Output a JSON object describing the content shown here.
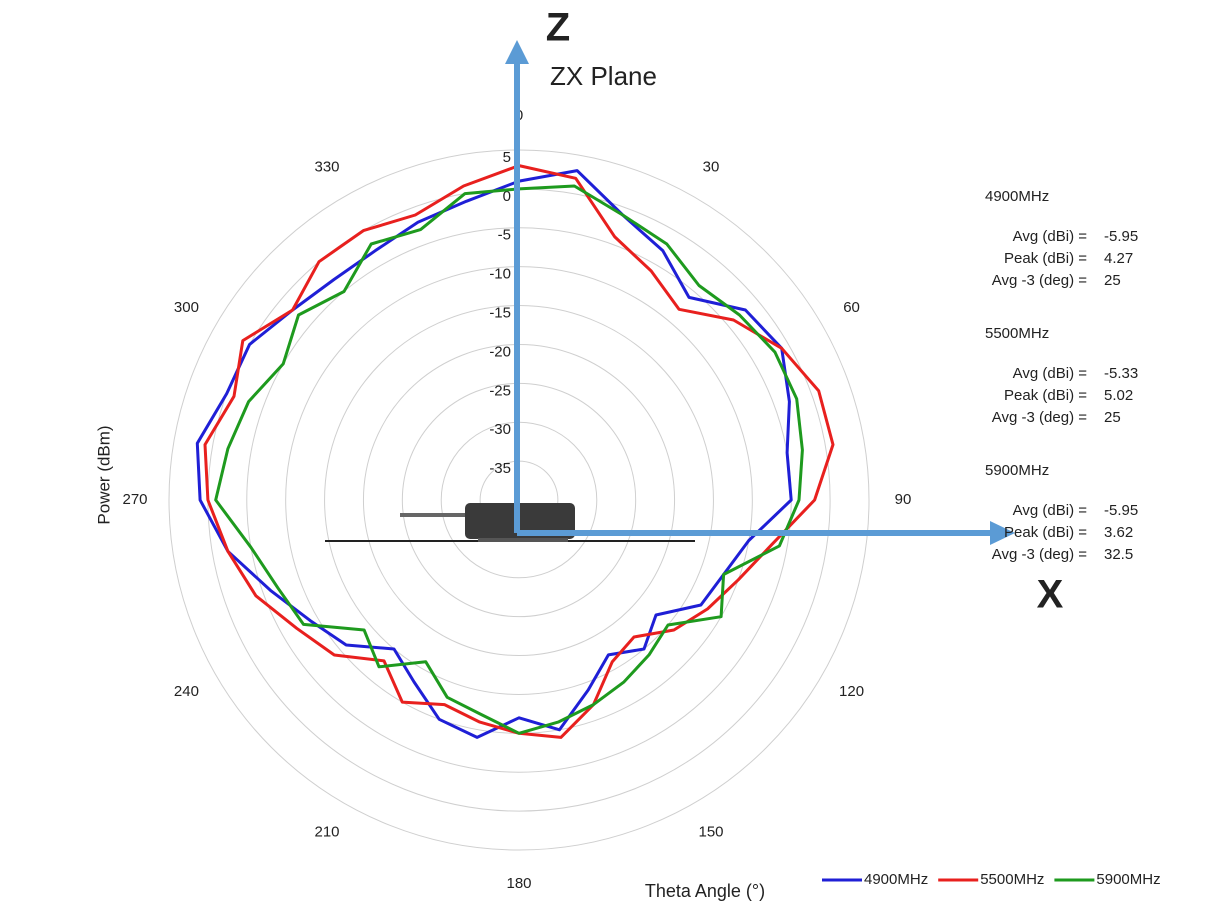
{
  "chart_data": {
    "type": "polar",
    "title": "ZX Plane",
    "x_axis_label": "Theta  Angle (°)",
    "y_axis_label": "Power (dBm)",
    "axis_annotations": [
      "Z",
      "X"
    ],
    "theta": [
      0,
      10,
      20,
      30,
      40,
      50,
      60,
      70,
      80,
      90,
      100,
      110,
      120,
      130,
      140,
      150,
      160,
      170,
      180,
      190,
      200,
      210,
      220,
      230,
      240,
      250,
      260,
      270,
      280,
      290,
      300,
      310,
      320,
      330,
      340,
      350
    ],
    "thetaticks": [
      0,
      30,
      60,
      90,
      120,
      150,
      180,
      210,
      240,
      270,
      300,
      330
    ],
    "rlim": [
      -40,
      5
    ],
    "rticks": [
      -35,
      -30,
      -25,
      -20,
      -15,
      -10,
      -5,
      0,
      5
    ],
    "grid": true,
    "legend": "bottom-right",
    "series": [
      {
        "name": "4900MHz",
        "color": "#1f1fd6",
        "values": [
          1,
          3,
          -1,
          -3,
          -6,
          -2,
          -1,
          -3,
          -5,
          -5,
          -10,
          -12,
          -13,
          -17,
          -15,
          -17,
          -14,
          -10,
          -12,
          -9,
          -10,
          -13,
          -15,
          -11,
          -9,
          -6,
          -2,
          1,
          2,
          0,
          0,
          -2,
          -3,
          -3,
          -2,
          -1
        ]
      },
      {
        "name": "5500MHz",
        "color": "#e8201e",
        "values": [
          3,
          2,
          -4,
          -6,
          -8,
          -4,
          -1,
          1,
          1,
          -2,
          -7,
          -10,
          -12,
          -14,
          -17,
          -16,
          -12,
          -9,
          -10,
          -11,
          -12,
          -10,
          -13,
          -9,
          -7,
          -4,
          -2,
          0,
          1,
          -1,
          1,
          -2,
          0,
          0,
          -1,
          1
        ]
      },
      {
        "name": "5900MHz",
        "color": "#1e9a1e",
        "values": [
          0,
          1,
          -1,
          -2,
          -4,
          -3,
          -2,
          -2,
          -3,
          -4,
          -6,
          -12,
          -10,
          -15,
          -14,
          -13,
          -12,
          -11,
          -10,
          -12,
          -13,
          -16,
          -12,
          -14,
          -8,
          -7,
          -5,
          -1,
          -2,
          -3,
          -5,
          -3,
          -5,
          -2,
          -3,
          0
        ]
      }
    ],
    "stats": [
      {
        "name": "4900MHz",
        "rows": [
          {
            "label": "Avg (dBi) =",
            "value": -5.95
          },
          {
            "label": "Peak (dBi) =",
            "value": 4.27
          },
          {
            "label": "Avg -3 (deg) =",
            "value": 25
          }
        ]
      },
      {
        "name": "5500MHz",
        "rows": [
          {
            "label": "Avg (dBi) =",
            "value": -5.33
          },
          {
            "label": "Peak (dBi) =",
            "value": 5.02
          },
          {
            "label": "Avg -3 (deg) =",
            "value": 25
          }
        ]
      },
      {
        "name": "5900MHz",
        "rows": [
          {
            "label": "Avg (dBi) =",
            "value": -5.95
          },
          {
            "label": "Peak (dBi) =",
            "value": 3.62
          },
          {
            "label": "Avg -3 (deg) =",
            "value": 32.5
          }
        ]
      }
    ]
  }
}
